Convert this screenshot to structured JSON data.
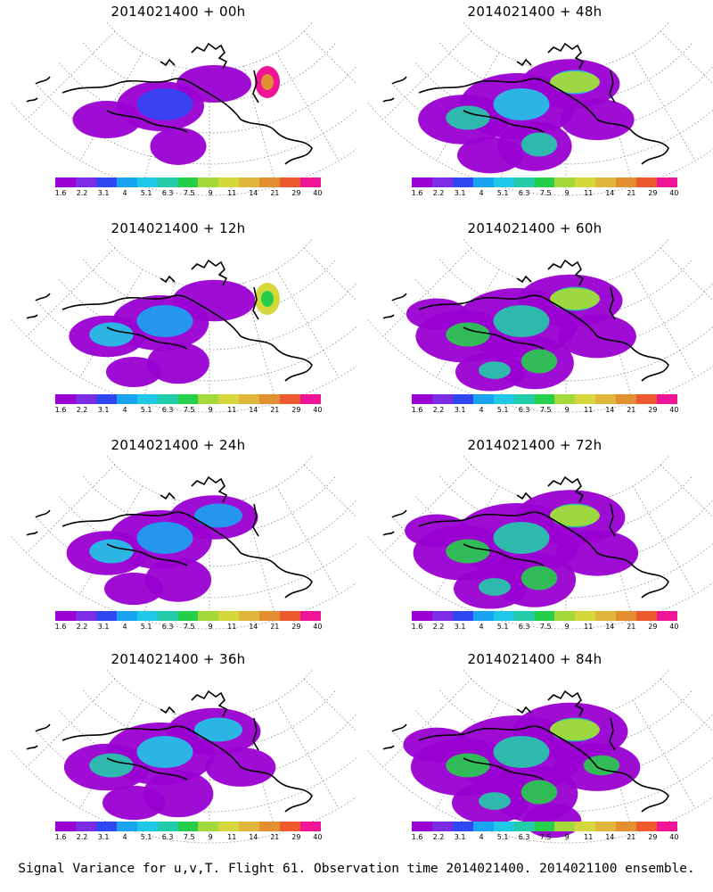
{
  "caption": "Signal Variance for u,v,T. Flight 61. Observation time 2014021400. 2014021100 ensemble.",
  "colorbar": {
    "colors": [
      "#9a00d2",
      "#7d2ce6",
      "#2f47f3",
      "#18a4f0",
      "#1fc8e6",
      "#22ccaa",
      "#25cf4a",
      "#a3d93b",
      "#d6d73c",
      "#dfb63a",
      "#e48e32",
      "#ec5a2d",
      "#f01496"
    ],
    "labels": [
      "1.6",
      "2.2",
      "3.1",
      "4",
      "5.1",
      "6.3",
      "7.5",
      "9",
      "11",
      "14",
      "21",
      "29",
      "40"
    ]
  },
  "panels": [
    {
      "title": "2014021400 + 00h"
    },
    {
      "title": "2014021400 + 48h"
    },
    {
      "title": "2014021400 + 12h"
    },
    {
      "title": "2014021400 + 60h"
    },
    {
      "title": "2014021400 + 24h"
    },
    {
      "title": "2014021400 + 72h"
    },
    {
      "title": "2014021400 + 36h"
    },
    {
      "title": "2014021400 + 84h"
    }
  ]
}
